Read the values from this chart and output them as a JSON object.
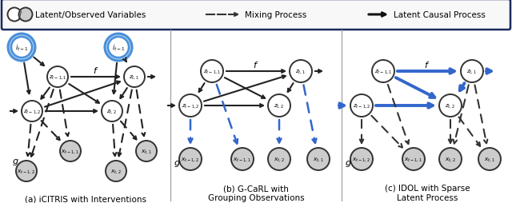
{
  "legend_box_color": "#1a2a5e",
  "legend_bg": "#f8f8f8",
  "node_white": "#ffffff",
  "node_gray": "#cccccc",
  "node_blue_border": "#4a90d9",
  "edge_black": "#222222",
  "edge_blue": "#3366cc",
  "panel_a_title": "(a) iCITRIS with Interventions",
  "panel_b_title": "(b) G-CaRL with\nGrouping Observations",
  "panel_c_title": "(c) IDOL with Sparse\nLatent Process",
  "fig_width": 6.4,
  "fig_height": 2.55,
  "dpi": 100
}
